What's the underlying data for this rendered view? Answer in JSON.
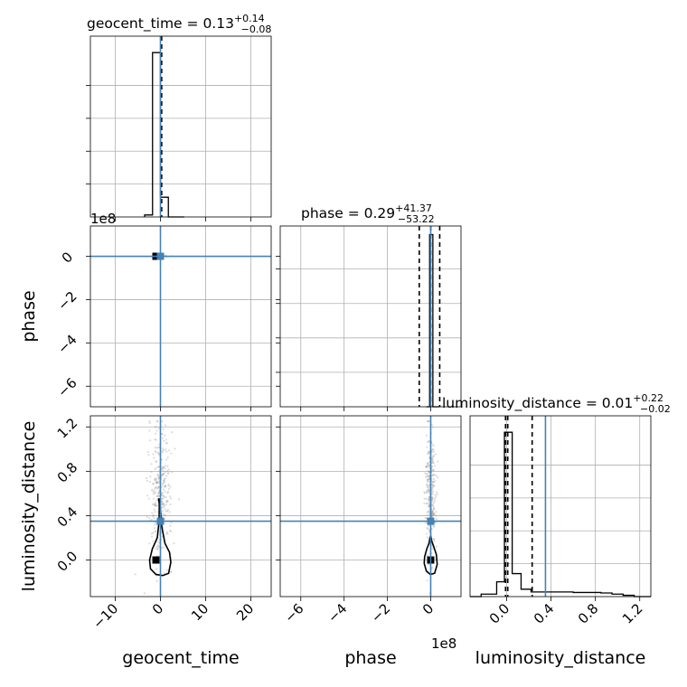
{
  "chart_data": {
    "type": "corner",
    "parameters": [
      "geocent_time",
      "phase",
      "luminosity_distance"
    ],
    "truths": {
      "geocent_time": 0.0,
      "phase": 0.0,
      "luminosity_distance": 0.35
    },
    "titles": {
      "geocent_time": {
        "name": "geocent_time",
        "median": "0.13",
        "plus": "+0.14",
        "minus": "−0.08"
      },
      "phase": {
        "name": "phase",
        "median": "0.29",
        "plus": "+41.37",
        "minus": "−53.22"
      },
      "luminosity_distance": {
        "name": "luminosity_distance",
        "median": "0.01",
        "plus": "+0.22",
        "minus": "−0.02"
      }
    },
    "axis_ranges": {
      "geocent_time": [
        -15.5,
        24.5
      ],
      "phase": [
        -695000000,
        140000000
      ],
      "luminosity_distance": [
        -0.33,
        1.3
      ]
    },
    "ticks": {
      "geocent_time": [
        {
          "v": -10,
          "label": "−10"
        },
        {
          "v": 0,
          "label": "0"
        },
        {
          "v": 10,
          "label": "10"
        },
        {
          "v": 20,
          "label": "20"
        }
      ],
      "phase": [
        {
          "v": -6,
          "label": "−6"
        },
        {
          "v": -4,
          "label": "−4"
        },
        {
          "v": -2,
          "label": "−2"
        },
        {
          "v": 0,
          "label": "0"
        }
      ],
      "phase_scale": 100000000,
      "phase_offset_label": "1e8",
      "luminosity_distance": [
        {
          "v": 0.0,
          "label": "0.0"
        },
        {
          "v": 0.4,
          "label": "0.4"
        },
        {
          "v": 0.8,
          "label": "0.8"
        },
        {
          "v": 1.2,
          "label": "1.2"
        }
      ]
    },
    "axis_labels": {
      "geocent_time": "geocent_time",
      "phase": "phase",
      "luminosity_distance": "luminosity_distance"
    },
    "offset_labels": {
      "geocent_top": "1e8",
      "phase_bottom": "1e8"
    },
    "quantiles": {
      "geocent_time": [
        0.05,
        0.13,
        0.27
      ],
      "phase": [
        -52930000,
        290000,
        41660000
      ],
      "luminosity_distance": [
        -0.01,
        0.01,
        0.23
      ]
    },
    "marginals": {
      "geocent_time": {
        "edges": [
          -3.5,
          -1.75,
          0.0,
          1.75,
          3.5,
          5.25
        ],
        "heights": [
          0.012,
          1.0,
          0.12,
          0.0,
          0.0
        ],
        "ymax": 1.1
      },
      "phase": {
        "edges": [
          -20000000,
          -5000000,
          10000000,
          25000000,
          40000000
        ],
        "heights": [
          0.0,
          1.0,
          0.0,
          0.0
        ],
        "ymax": 1.05
      },
      "luminosity_distance": {
        "edges": [
          -0.33,
          -0.23,
          -0.09,
          -0.02,
          0.05,
          0.13,
          0.22,
          0.6,
          0.85,
          0.95,
          1.05,
          1.15,
          1.3
        ],
        "heights": [
          0.0,
          0.015,
          0.09,
          1.0,
          0.14,
          0.045,
          0.028,
          0.025,
          0.022,
          0.015,
          0.008,
          0.0
        ],
        "ymax": 1.1
      }
    },
    "point_means": {
      "geocent_time": 0.0,
      "phase": 0.0,
      "luminosity_distance": 0.6
    },
    "point_spread": {
      "geocent_time": 1.3,
      "phase": 12000000,
      "luminosity_distance": 0.3
    },
    "contour_ld_vs_time": [
      [
        -0.4,
        0.55
      ],
      [
        -0.25,
        0.5
      ],
      [
        -0.3,
        0.35
      ],
      [
        -0.7,
        0.2
      ],
      [
        -1.8,
        0.1
      ],
      [
        -2.4,
        0.0
      ],
      [
        -2.2,
        -0.08
      ],
      [
        -1.0,
        -0.13
      ],
      [
        0.5,
        -0.14
      ],
      [
        1.8,
        -0.12
      ],
      [
        2.3,
        -0.02
      ],
      [
        2.0,
        0.07
      ],
      [
        1.0,
        0.15
      ],
      [
        0.3,
        0.3
      ],
      [
        0.0,
        0.45
      ],
      [
        -0.2,
        0.55
      ],
      [
        -0.4,
        0.55
      ]
    ],
    "contour_ld_vs_phase": [
      [
        -3000000,
        0.2
      ],
      [
        -8000000,
        0.15
      ],
      [
        -18000000,
        0.1
      ],
      [
        -28000000,
        0.03
      ],
      [
        -30000000,
        -0.03
      ],
      [
        -20000000,
        -0.1
      ],
      [
        -2000000,
        -0.13
      ],
      [
        18000000,
        -0.12
      ],
      [
        30000000,
        -0.04
      ],
      [
        26000000,
        0.05
      ],
      [
        14000000,
        0.12
      ],
      [
        5000000,
        0.17
      ],
      [
        0,
        0.22
      ],
      [
        -3000000,
        0.2
      ]
    ]
  }
}
